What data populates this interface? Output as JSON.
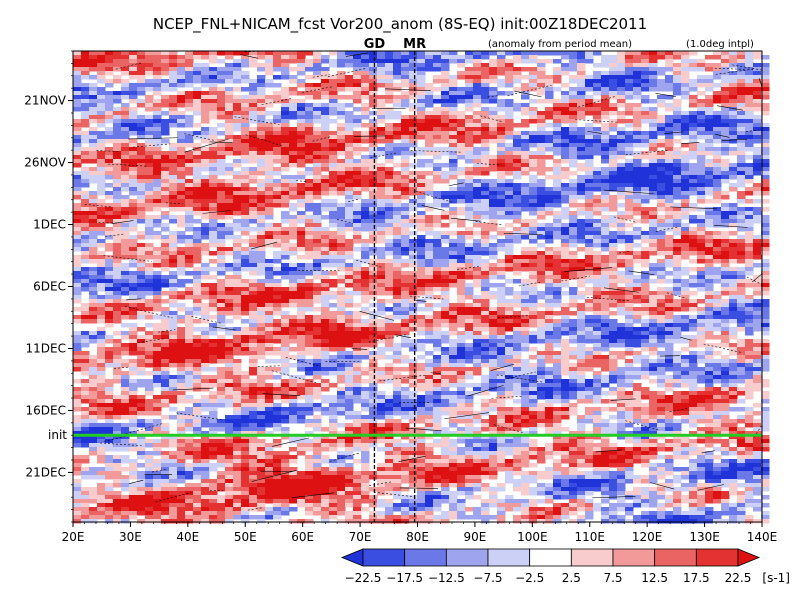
{
  "chart_data": {
    "type": "heatmap",
    "title": "NCEP_FNL+NICAM_fcst Vor200_anom (8S-EQ) init:00Z18DEC2011",
    "subtitle_left": "(anomaly from period mean)",
    "subtitle_right": "(1.0deg intpl)",
    "x_axis": {
      "range": [
        20,
        140
      ],
      "ticks": [
        20,
        30,
        40,
        50,
        60,
        70,
        80,
        90,
        100,
        110,
        120,
        130,
        140
      ],
      "tick_labels": [
        "20E",
        "30E",
        "40E",
        "50E",
        "60E",
        "70E",
        "80E",
        "90E",
        "100E",
        "110E",
        "120E",
        "130E",
        "140E"
      ]
    },
    "y_axis": {
      "range_start": "2011-11-17",
      "range_end": "2011-12-25",
      "ticks": [
        "2011-11-21",
        "2011-11-26",
        "2011-12-01",
        "2011-12-06",
        "2011-12-11",
        "2011-12-16",
        "2011-12-21"
      ],
      "tick_labels": [
        "21NOV",
        "26NOV",
        "1DEC",
        "6DEC",
        "11DEC",
        "16DEC",
        "21DEC"
      ]
    },
    "init_line": {
      "date": "2011-12-18",
      "label": "init",
      "color": "#22cc22"
    },
    "markers": [
      {
        "label": "GD",
        "lon": 72.5,
        "color": "#ee2222"
      },
      {
        "label": "MR",
        "lon": 79.5,
        "color": "#ee2222"
      }
    ],
    "colorbar": {
      "levels": [
        "−22.5",
        "−17.5",
        "−12.5",
        "−7.5",
        "−2.5",
        "2.5",
        "7.5",
        "12.5",
        "17.5",
        "22.5"
      ],
      "unit": "[s-1]",
      "colors": [
        "#1f33d9",
        "#3b4ee2",
        "#6a78e8",
        "#9ea5ee",
        "#cdd0f6",
        "#ffffff",
        "#f8cccc",
        "#f29a9a",
        "#eb6464",
        "#e43131",
        "#dd1111"
      ]
    }
  }
}
